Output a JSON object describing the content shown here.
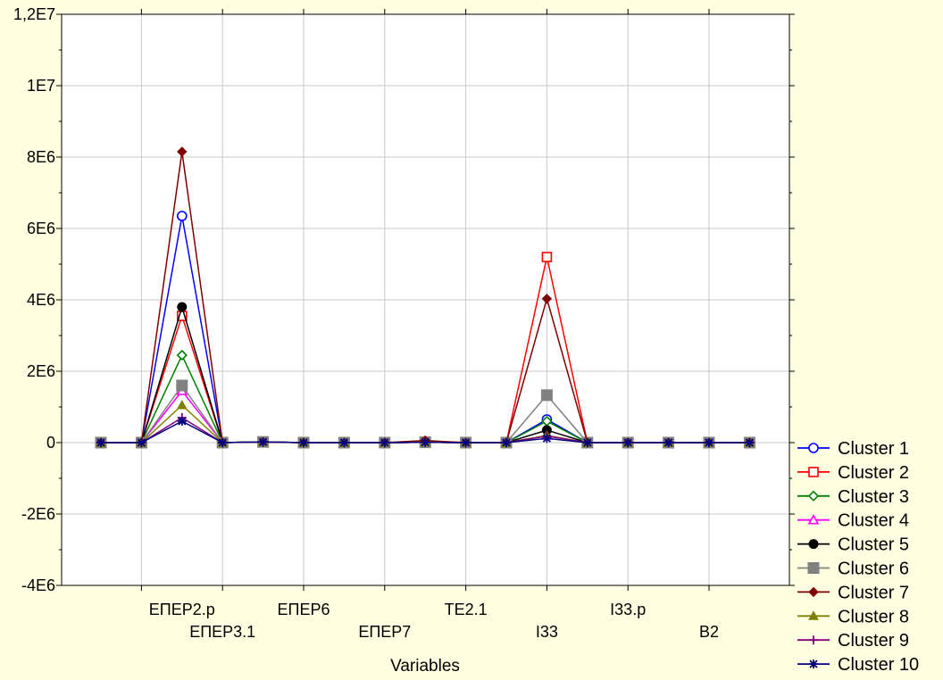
{
  "chart_data": {
    "type": "line",
    "title": "",
    "xlabel": "Variables",
    "ylabel": "",
    "ylim": [
      -4000000,
      12000000
    ],
    "yticks": [
      -4000000,
      -2000000,
      0,
      2000000,
      4000000,
      6000000,
      8000000,
      10000000,
      12000000
    ],
    "ytick_labels": [
      "-4E6",
      "-2E6",
      "0",
      "2E6",
      "4E6",
      "6E6",
      "8E6",
      "1E7",
      "1,2E7"
    ],
    "x_labeled_positions": [
      {
        "index": 2,
        "label": "ЕПЕР2.р",
        "row": 0
      },
      {
        "index": 3,
        "label": "ЕПЕР3.1",
        "row": 1
      },
      {
        "index": 5,
        "label": "ЕПЕР6",
        "row": 0
      },
      {
        "index": 7,
        "label": "ЕПЕР7",
        "row": 1
      },
      {
        "index": 9,
        "label": "TE2.1",
        "row": 0
      },
      {
        "index": 11,
        "label": "I33",
        "row": 1
      },
      {
        "index": 13,
        "label": "I33.p",
        "row": 0
      },
      {
        "index": 15,
        "label": "B2",
        "row": 1
      }
    ],
    "x_count": 17,
    "grid": true,
    "legend_position": "bottom-right",
    "series": [
      {
        "name": "Cluster  1",
        "color": "#0000FF",
        "marker": "circle-open",
        "values": [
          0,
          0,
          6350000,
          0,
          20000,
          0,
          0,
          0,
          10000,
          0,
          0,
          650000,
          0,
          0,
          0,
          0,
          0
        ]
      },
      {
        "name": "Cluster  2",
        "color": "#FF0000",
        "marker": "square-open",
        "values": [
          0,
          0,
          3550000,
          0,
          20000,
          0,
          0,
          0,
          10000,
          0,
          0,
          5200000,
          0,
          0,
          0,
          0,
          0
        ]
      },
      {
        "name": "Cluster  3",
        "color": "#008000",
        "marker": "diamond-open",
        "values": [
          0,
          0,
          2450000,
          0,
          20000,
          0,
          0,
          0,
          10000,
          0,
          0,
          600000,
          0,
          0,
          0,
          0,
          0
        ]
      },
      {
        "name": "Cluster  4",
        "color": "#FF00FF",
        "marker": "triangle-open",
        "values": [
          0,
          0,
          1450000,
          0,
          20000,
          0,
          0,
          0,
          10000,
          0,
          0,
          200000,
          0,
          0,
          0,
          0,
          0
        ]
      },
      {
        "name": "Cluster  5",
        "color": "#000000",
        "marker": "circle-filled",
        "values": [
          0,
          0,
          3800000,
          0,
          20000,
          0,
          0,
          0,
          10000,
          0,
          0,
          350000,
          0,
          0,
          0,
          0,
          0
        ]
      },
      {
        "name": "Cluster  6",
        "color": "#808080",
        "marker": "square-filled",
        "values": [
          0,
          0,
          1600000,
          0,
          20000,
          0,
          0,
          0,
          10000,
          0,
          0,
          1330000,
          0,
          0,
          0,
          0,
          0
        ]
      },
      {
        "name": "Cluster  7",
        "color": "#800000",
        "marker": "diamond-filled",
        "values": [
          0,
          0,
          8150000,
          0,
          20000,
          0,
          0,
          0,
          60000,
          0,
          0,
          4030000,
          0,
          0,
          0,
          0,
          0
        ]
      },
      {
        "name": "Cluster  8",
        "color": "#808000",
        "marker": "triangle-filled",
        "values": [
          0,
          0,
          1050000,
          0,
          20000,
          0,
          0,
          0,
          10000,
          0,
          0,
          200000,
          0,
          0,
          0,
          0,
          0
        ]
      },
      {
        "name": "Cluster  9",
        "color": "#800080",
        "marker": "plus",
        "values": [
          0,
          0,
          700000,
          0,
          20000,
          0,
          0,
          0,
          10000,
          0,
          0,
          180000,
          0,
          0,
          0,
          0,
          0
        ]
      },
      {
        "name": "Cluster  10",
        "color": "#000080",
        "marker": "asterisk",
        "values": [
          0,
          0,
          600000,
          0,
          20000,
          0,
          0,
          0,
          10000,
          0,
          0,
          120000,
          0,
          0,
          0,
          0,
          0
        ]
      }
    ]
  }
}
